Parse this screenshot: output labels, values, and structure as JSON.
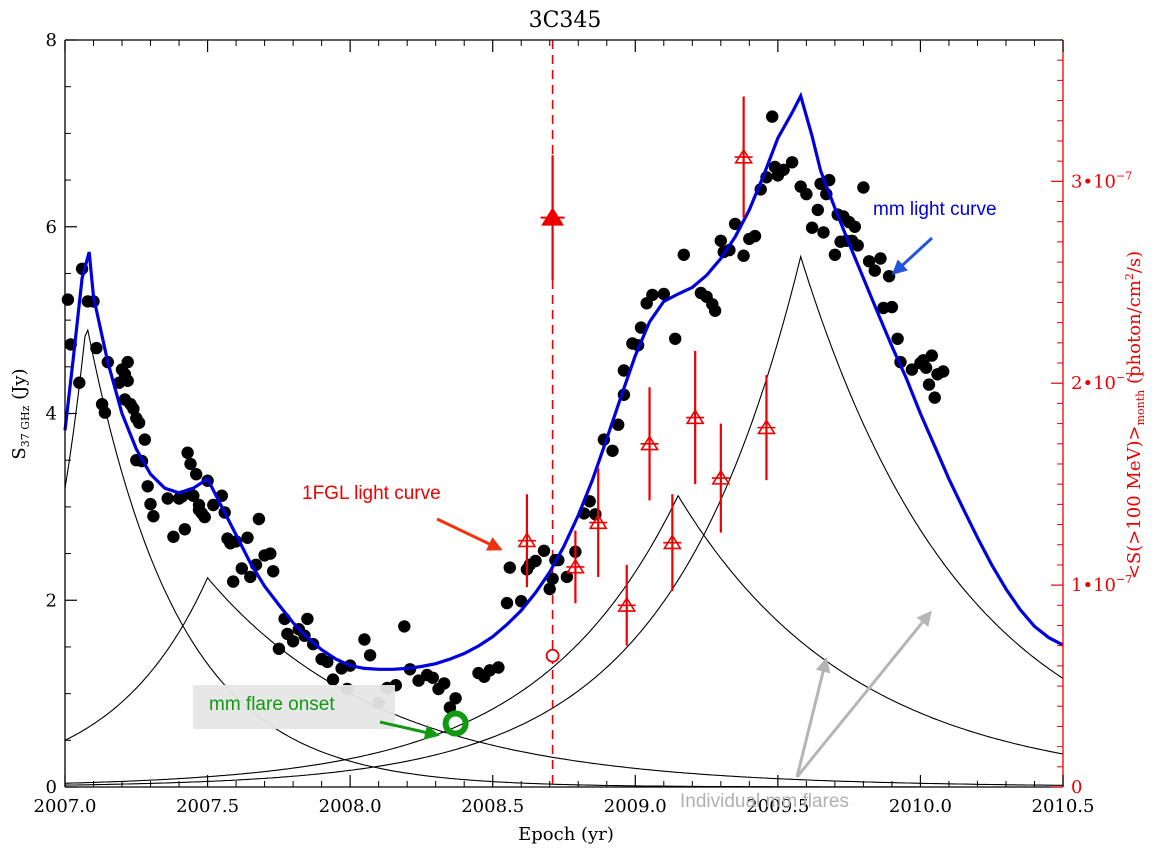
{
  "chart_data": {
    "type": "scatter",
    "title": "3C345",
    "xlabel": "Epoch (yr)",
    "ylabel": "S",
    "ylabel_sub": "37 GHz",
    "ylabel_unit": " (Jy)",
    "y2label_parts": [
      "<S(>100 MeV)>",
      "month",
      " (photon/cm",
      "2",
      "/s)"
    ],
    "xlim": [
      2007.0,
      2010.5
    ],
    "ylim": [
      0,
      8
    ],
    "y2lim": [
      0,
      3.7e-07
    ],
    "x_ticks": [
      2007.0,
      2007.5,
      2008.0,
      2008.5,
      2009.0,
      2009.5,
      2010.0,
      2010.5
    ],
    "x_tick_labels": [
      "2007.0",
      "2007.5",
      "2008.0",
      "2008.5",
      "2009.0",
      "2009.5",
      "2010.0",
      "2010.5"
    ],
    "y_ticks": [
      0,
      2,
      4,
      6,
      8
    ],
    "y_tick_labels": [
      "0",
      "2",
      "4",
      "6",
      "8"
    ],
    "y2_ticks": [
      0,
      1e-07,
      2e-07,
      3e-07
    ],
    "y2_tick_labels": [
      [
        "0",
        ""
      ],
      [
        "1•10",
        "−7"
      ],
      [
        "2•10",
        "−7"
      ],
      [
        "3•10",
        "−7"
      ]
    ],
    "colors": {
      "mm": "#000000",
      "fit": "#0000dd",
      "gamma": "#ee0000",
      "onset": "#119911",
      "flares_note": "#b0b0b0"
    },
    "mm_points": [
      [
        2007.01,
        5.22
      ],
      [
        2007.02,
        4.74
      ],
      [
        2007.05,
        4.33
      ],
      [
        2007.06,
        5.55
      ],
      [
        2007.08,
        5.2
      ],
      [
        2007.1,
        5.2
      ],
      [
        2007.11,
        4.7
      ],
      [
        2007.13,
        4.1
      ],
      [
        2007.14,
        4.01
      ],
      [
        2007.15,
        4.55
      ],
      [
        2007.19,
        4.33
      ],
      [
        2007.2,
        4.47
      ],
      [
        2007.21,
        4.42
      ],
      [
        2007.21,
        4.15
      ],
      [
        2007.22,
        4.55
      ],
      [
        2007.22,
        4.35
      ],
      [
        2007.23,
        4.1
      ],
      [
        2007.24,
        4.05
      ],
      [
        2007.25,
        3.95
      ],
      [
        2007.26,
        3.9
      ],
      [
        2007.25,
        3.5
      ],
      [
        2007.27,
        3.49
      ],
      [
        2007.28,
        3.72
      ],
      [
        2007.29,
        3.22
      ],
      [
        2007.3,
        3.03
      ],
      [
        2007.31,
        2.9
      ],
      [
        2007.36,
        3.09
      ],
      [
        2007.38,
        2.68
      ],
      [
        2007.4,
        3.09
      ],
      [
        2007.41,
        3.11
      ],
      [
        2007.42,
        2.76
      ],
      [
        2007.43,
        3.58
      ],
      [
        2007.44,
        3.14
      ],
      [
        2007.44,
        3.46
      ],
      [
        2007.45,
        3.12
      ],
      [
        2007.46,
        3.35
      ],
      [
        2007.47,
        2.97
      ],
      [
        2007.47,
        3.02
      ],
      [
        2007.48,
        2.93
      ],
      [
        2007.49,
        2.89
      ],
      [
        2007.5,
        3.28
      ],
      [
        2007.52,
        3.02
      ],
      [
        2007.55,
        3.12
      ],
      [
        2007.56,
        2.94
      ],
      [
        2007.57,
        2.66
      ],
      [
        2007.58,
        2.61
      ],
      [
        2007.59,
        2.2
      ],
      [
        2007.6,
        2.63
      ],
      [
        2007.62,
        2.34
      ],
      [
        2007.64,
        2.67
      ],
      [
        2007.65,
        2.25
      ],
      [
        2007.67,
        2.38
      ],
      [
        2007.68,
        2.87
      ],
      [
        2007.7,
        2.48
      ],
      [
        2007.72,
        2.5
      ],
      [
        2007.73,
        2.31
      ],
      [
        2007.75,
        1.48
      ],
      [
        2007.77,
        1.8
      ],
      [
        2007.78,
        1.64
      ],
      [
        2007.8,
        1.56
      ],
      [
        2007.82,
        1.69
      ],
      [
        2007.84,
        1.62
      ],
      [
        2007.85,
        1.8
      ],
      [
        2007.87,
        1.53
      ],
      [
        2007.9,
        1.37
      ],
      [
        2007.92,
        1.34
      ],
      [
        2007.94,
        1.15
      ],
      [
        2007.97,
        1.27
      ],
      [
        2007.99,
        1.05
      ],
      [
        2008.0,
        1.3
      ],
      [
        2008.05,
        1.58
      ],
      [
        2008.07,
        1.41
      ],
      [
        2008.1,
        0.9
      ],
      [
        2008.13,
        1.06
      ],
      [
        2008.16,
        1.09
      ],
      [
        2008.19,
        1.72
      ],
      [
        2008.21,
        1.26
      ],
      [
        2008.24,
        1.14
      ],
      [
        2008.27,
        1.2
      ],
      [
        2008.29,
        1.17
      ],
      [
        2008.31,
        1.05
      ],
      [
        2008.33,
        1.11
      ],
      [
        2008.55,
        1.97
      ],
      [
        2008.6,
        1.99
      ],
      [
        2008.62,
        2.33
      ],
      [
        2008.63,
        2.38
      ],
      [
        2008.65,
        2.42
      ],
      [
        2008.68,
        2.53
      ],
      [
        2008.7,
        2.12
      ],
      [
        2008.71,
        2.23
      ],
      [
        2008.72,
        2.43
      ],
      [
        2008.73,
        2.43
      ],
      [
        2008.76,
        2.25
      ],
      [
        2008.79,
        2.52
      ],
      [
        2008.82,
        2.93
      ],
      [
        2008.84,
        3.06
      ],
      [
        2008.86,
        2.92
      ],
      [
        2008.89,
        3.72
      ],
      [
        2008.92,
        3.6
      ],
      [
        2008.94,
        3.88
      ],
      [
        2008.96,
        4.46
      ],
      [
        2008.99,
        4.75
      ],
      [
        2009.01,
        4.73
      ],
      [
        2009.02,
        4.92
      ],
      [
        2009.04,
        5.18
      ],
      [
        2009.06,
        5.27
      ],
      [
        2009.1,
        5.28
      ],
      [
        2009.14,
        4.8
      ],
      [
        2009.17,
        5.7
      ],
      [
        2009.23,
        5.29
      ],
      [
        2009.25,
        5.25
      ],
      [
        2009.27,
        5.17
      ],
      [
        2009.28,
        5.1
      ],
      [
        2009.3,
        5.85
      ],
      [
        2009.31,
        5.73
      ],
      [
        2009.33,
        5.75
      ],
      [
        2009.35,
        6.03
      ],
      [
        2009.38,
        5.69
      ],
      [
        2009.4,
        5.87
      ],
      [
        2009.42,
        5.9
      ],
      [
        2009.44,
        6.4
      ],
      [
        2009.46,
        6.53
      ],
      [
        2009.48,
        7.18
      ],
      [
        2009.49,
        6.64
      ],
      [
        2009.5,
        6.55
      ],
      [
        2009.52,
        6.61
      ],
      [
        2009.55,
        6.69
      ],
      [
        2009.58,
        6.43
      ],
      [
        2009.6,
        6.35
      ],
      [
        2009.62,
        5.99
      ],
      [
        2009.64,
        6.18
      ],
      [
        2009.65,
        6.46
      ],
      [
        2009.66,
        5.94
      ],
      [
        2009.67,
        6.35
      ],
      [
        2009.68,
        6.5
      ],
      [
        2009.7,
        5.7
      ],
      [
        2009.71,
        6.13
      ],
      [
        2009.72,
        5.84
      ],
      [
        2009.73,
        6.11
      ],
      [
        2009.74,
        5.85
      ],
      [
        2009.75,
        6.05
      ],
      [
        2009.76,
        5.85
      ],
      [
        2009.77,
        6.0
      ],
      [
        2009.78,
        5.8
      ],
      [
        2009.8,
        6.42
      ],
      [
        2009.82,
        5.63
      ],
      [
        2009.84,
        5.53
      ],
      [
        2009.86,
        5.66
      ],
      [
        2009.87,
        5.13
      ],
      [
        2009.89,
        5.47
      ],
      [
        2009.9,
        5.14
      ],
      [
        2009.92,
        4.8
      ],
      [
        2009.97,
        4.47
      ],
      [
        2010.0,
        4.54
      ],
      [
        2010.01,
        4.57
      ],
      [
        2010.02,
        4.49
      ],
      [
        2010.03,
        4.31
      ],
      [
        2010.04,
        4.62
      ],
      [
        2010.05,
        4.17
      ],
      [
        2010.06,
        4.42
      ],
      [
        2009.93,
        4.55
      ],
      [
        2010.08,
        4.45
      ],
      [
        2008.96,
        4.2
      ],
      [
        2008.35,
        0.85
      ],
      [
        2008.37,
        0.95
      ],
      [
        2008.45,
        1.22
      ],
      [
        2008.47,
        1.18
      ],
      [
        2008.49,
        1.25
      ],
      [
        2008.52,
        1.28
      ],
      [
        2008.56,
        2.35
      ]
    ],
    "fit_curve": [
      [
        2007.0,
        3.82
      ],
      [
        2007.03,
        4.62
      ],
      [
        2007.06,
        5.45
      ],
      [
        2007.085,
        5.73
      ],
      [
        2007.1,
        5.25
      ],
      [
        2007.15,
        4.55
      ],
      [
        2007.2,
        4.0
      ],
      [
        2007.25,
        3.62
      ],
      [
        2007.3,
        3.35
      ],
      [
        2007.35,
        3.2
      ],
      [
        2007.4,
        3.15
      ],
      [
        2007.45,
        3.2
      ],
      [
        2007.5,
        3.3
      ],
      [
        2007.55,
        3.0
      ],
      [
        2007.6,
        2.7
      ],
      [
        2007.65,
        2.4
      ],
      [
        2007.7,
        2.15
      ],
      [
        2007.75,
        1.95
      ],
      [
        2007.8,
        1.76
      ],
      [
        2007.85,
        1.6
      ],
      [
        2007.9,
        1.47
      ],
      [
        2007.95,
        1.37
      ],
      [
        2008.0,
        1.3
      ],
      [
        2008.05,
        1.27
      ],
      [
        2008.1,
        1.26
      ],
      [
        2008.15,
        1.26
      ],
      [
        2008.2,
        1.27
      ],
      [
        2008.25,
        1.29
      ],
      [
        2008.3,
        1.32
      ],
      [
        2008.35,
        1.37
      ],
      [
        2008.4,
        1.43
      ],
      [
        2008.45,
        1.51
      ],
      [
        2008.5,
        1.61
      ],
      [
        2008.55,
        1.74
      ],
      [
        2008.6,
        1.89
      ],
      [
        2008.65,
        2.08
      ],
      [
        2008.7,
        2.3
      ],
      [
        2008.75,
        2.58
      ],
      [
        2008.8,
        2.91
      ],
      [
        2008.85,
        3.29
      ],
      [
        2008.9,
        3.73
      ],
      [
        2008.95,
        4.18
      ],
      [
        2009.0,
        4.62
      ],
      [
        2009.05,
        4.98
      ],
      [
        2009.1,
        5.2
      ],
      [
        2009.15,
        5.28
      ],
      [
        2009.2,
        5.35
      ],
      [
        2009.25,
        5.48
      ],
      [
        2009.3,
        5.66
      ],
      [
        2009.35,
        5.89
      ],
      [
        2009.4,
        6.18
      ],
      [
        2009.45,
        6.55
      ],
      [
        2009.5,
        6.95
      ],
      [
        2009.55,
        7.22
      ],
      [
        2009.58,
        7.4
      ],
      [
        2009.62,
        6.97
      ],
      [
        2009.65,
        6.6
      ],
      [
        2009.7,
        6.2
      ],
      [
        2009.75,
        5.82
      ],
      [
        2009.8,
        5.45
      ],
      [
        2009.85,
        5.08
      ],
      [
        2009.9,
        4.72
      ],
      [
        2009.95,
        4.38
      ],
      [
        2010.0,
        4.0
      ],
      [
        2010.05,
        3.65
      ],
      [
        2010.1,
        3.3
      ],
      [
        2010.15,
        2.98
      ],
      [
        2010.2,
        2.67
      ],
      [
        2010.25,
        2.38
      ],
      [
        2010.3,
        2.12
      ],
      [
        2010.35,
        1.9
      ],
      [
        2010.4,
        1.72
      ],
      [
        2010.45,
        1.6
      ],
      [
        2010.5,
        1.52
      ]
    ],
    "flare_components": [
      {
        "peak_x": 2007.075,
        "peak_y": 4.97,
        "start_y": 3.2,
        "tau_rise": 0.18,
        "tau_decay": 0.32
      },
      {
        "peak_x": 2007.5,
        "peak_y": 2.24,
        "start_y": 0.5,
        "tau_rise": 0.33,
        "tau_decay": 0.62
      },
      {
        "peak_x": 2009.15,
        "peak_y": 3.12,
        "start_y": 0.04,
        "tau_rise": 0.33,
        "tau_decay": 0.62
      },
      {
        "peak_x": 2009.58,
        "peak_y": 5.68,
        "start_y": 0.02,
        "tau_rise": 0.33,
        "tau_decay": 0.58
      }
    ],
    "gamma_points": [
      {
        "x": 2008.62,
        "y": 1.22e-07,
        "err": 2.3e-08
      },
      {
        "x": 2008.79,
        "y": 1.09e-07,
        "err": 1.8e-08
      },
      {
        "x": 2008.87,
        "y": 1.31e-07,
        "err": 2.7e-08
      },
      {
        "x": 2008.97,
        "y": 9e-08,
        "err": 2e-08
      },
      {
        "x": 2009.05,
        "y": 1.7e-07,
        "err": 2.8e-08
      },
      {
        "x": 2009.13,
        "y": 1.21e-07,
        "err": 2.4e-08
      },
      {
        "x": 2009.21,
        "y": 1.83e-07,
        "err": 3.3e-08
      },
      {
        "x": 2009.3,
        "y": 1.53e-07,
        "err": 2.7e-08
      },
      {
        "x": 2009.38,
        "y": 3.12e-07,
        "err": 3e-08
      },
      {
        "x": 2009.46,
        "y": 1.78e-07,
        "err": 2.6e-08
      }
    ],
    "gamma_1fgl_point": {
      "x": 2008.71,
      "y": 2.82e-07,
      "err": 3.1e-08
    },
    "gamma_marker_circle": {
      "x": 2008.71,
      "y": 6.5e-08
    },
    "vertical_line_x": 2008.71,
    "onset_marker": {
      "x": 2008.37,
      "y": 0.68
    },
    "annotations": {
      "fgl_label": "1FGL light curve",
      "mm_curve_label": "mm light curve",
      "onset_label": "mm flare onset",
      "flares_label": "Individual mm flares"
    }
  }
}
